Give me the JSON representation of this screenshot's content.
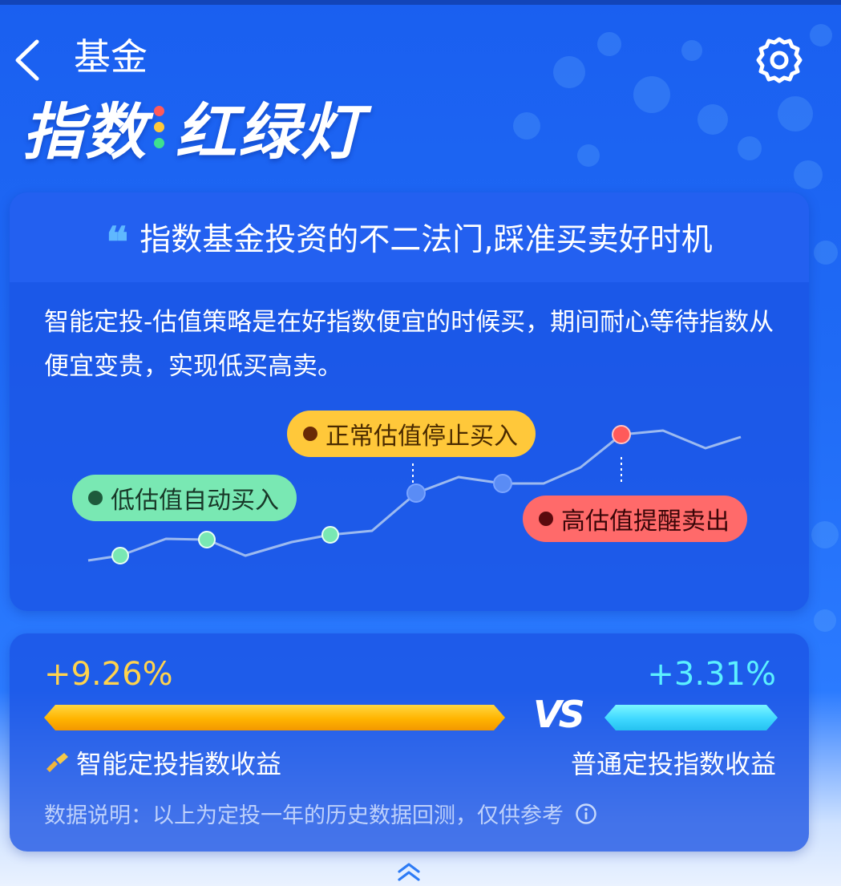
{
  "header": {
    "back_icon": "chevron-left-icon",
    "title": "基金",
    "settings_icon": "gear-icon"
  },
  "brand": {
    "left": "指数",
    "right": "红绿灯",
    "dot_colors": [
      "#ff5a5a",
      "#ffc83a",
      "#3ee08f"
    ]
  },
  "intro_card": {
    "quote_icon": "quote-icon",
    "heading": "指数基金投资的不二法门,踩准买卖好时机",
    "description": "智能定投-估值策略是在好指数便宜的时候买，期间耐心等待指数从便宜变贵，实现低买高卖。",
    "labels": {
      "low": "低估值自动买入",
      "normal": "正常估值停止买入",
      "high": "高估值提醒卖出"
    },
    "colors": {
      "low": "#79e8b3",
      "normal": "#ffc83a",
      "high": "#ff6a6a"
    }
  },
  "compare_card": {
    "left_pct": "+9.26%",
    "left_label": "智能定投指数收益",
    "left_icon": "pen-icon",
    "vs": "VS",
    "right_pct": "+3.31%",
    "right_label": "普通定投指数收益",
    "note": "数据说明：以上为定投一年的历史数据回测，仅供参考",
    "info_icon": "info-icon",
    "left_bar_color": "#ffb400",
    "right_bar_color": "#3fd8ff"
  },
  "footer": {
    "expand_icon": "double-chevron-up-icon"
  }
}
